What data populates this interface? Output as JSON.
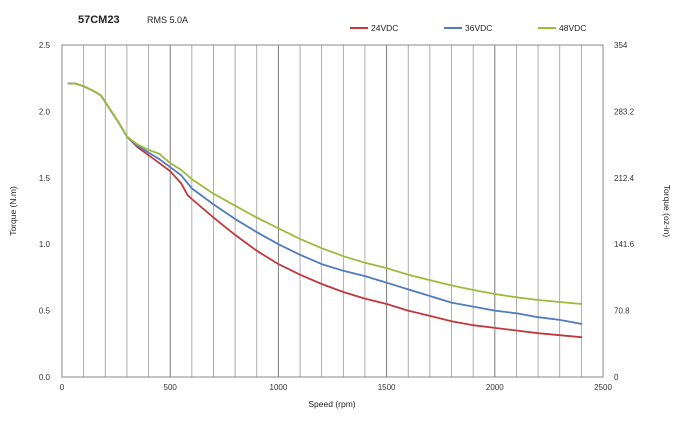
{
  "chart_data": {
    "type": "line",
    "title": "57CM23",
    "subtitle": "RMS 5.0A",
    "xlabel": "Speed (rpm)",
    "ylabel": "Torque (N.m)",
    "y2label": "Torque (oz-in)",
    "xlim": [
      0,
      2500
    ],
    "ylim": [
      0,
      2.5
    ],
    "y2lim": [
      0,
      354
    ],
    "x_ticks": [
      "0",
      "500",
      "1000",
      "1500",
      "2000",
      "2500"
    ],
    "y_ticks": [
      "0.0",
      "0.5",
      "1.0",
      "1.5",
      "2.0",
      "2.5"
    ],
    "y2_ticks": [
      "0",
      "70.8",
      "141.6",
      "212.4",
      "283.2",
      "354"
    ],
    "grid": true,
    "legend_position": "top-right",
    "series": [
      {
        "name": "24VDC",
        "color": "#c0393b",
        "points": [
          [
            30,
            2.21
          ],
          [
            60,
            2.21
          ],
          [
            100,
            2.19
          ],
          [
            150,
            2.15
          ],
          [
            180,
            2.12
          ],
          [
            220,
            2.02
          ],
          [
            260,
            1.92
          ],
          [
            300,
            1.81
          ],
          [
            350,
            1.73
          ],
          [
            400,
            1.67
          ],
          [
            450,
            1.61
          ],
          [
            500,
            1.55
          ],
          [
            550,
            1.46
          ],
          [
            580,
            1.37
          ],
          [
            600,
            1.34
          ],
          [
            700,
            1.2
          ],
          [
            800,
            1.07
          ],
          [
            900,
            0.95
          ],
          [
            1000,
            0.85
          ],
          [
            1100,
            0.77
          ],
          [
            1200,
            0.7
          ],
          [
            1300,
            0.64
          ],
          [
            1400,
            0.59
          ],
          [
            1500,
            0.55
          ],
          [
            1600,
            0.5
          ],
          [
            1700,
            0.46
          ],
          [
            1800,
            0.42
          ],
          [
            1900,
            0.39
          ],
          [
            2000,
            0.37
          ],
          [
            2100,
            0.35
          ],
          [
            2200,
            0.33
          ],
          [
            2300,
            0.315
          ],
          [
            2400,
            0.3
          ]
        ]
      },
      {
        "name": "36VDC",
        "color": "#4f7bbf",
        "points": [
          [
            30,
            2.21
          ],
          [
            60,
            2.21
          ],
          [
            100,
            2.19
          ],
          [
            150,
            2.15
          ],
          [
            180,
            2.12
          ],
          [
            220,
            2.02
          ],
          [
            260,
            1.92
          ],
          [
            300,
            1.81
          ],
          [
            350,
            1.74
          ],
          [
            400,
            1.69
          ],
          [
            450,
            1.64
          ],
          [
            500,
            1.58
          ],
          [
            550,
            1.52
          ],
          [
            600,
            1.42
          ],
          [
            700,
            1.3
          ],
          [
            800,
            1.19
          ],
          [
            900,
            1.09
          ],
          [
            1000,
            1.0
          ],
          [
            1100,
            0.92
          ],
          [
            1200,
            0.85
          ],
          [
            1300,
            0.8
          ],
          [
            1400,
            0.76
          ],
          [
            1500,
            0.71
          ],
          [
            1600,
            0.66
          ],
          [
            1700,
            0.61
          ],
          [
            1800,
            0.56
          ],
          [
            1900,
            0.53
          ],
          [
            2000,
            0.5
          ],
          [
            2100,
            0.48
          ],
          [
            2200,
            0.45
          ],
          [
            2300,
            0.43
          ],
          [
            2400,
            0.4
          ]
        ]
      },
      {
        "name": "48VDC",
        "color": "#9bbb3c",
        "points": [
          [
            30,
            2.21
          ],
          [
            60,
            2.21
          ],
          [
            100,
            2.19
          ],
          [
            150,
            2.15
          ],
          [
            180,
            2.12
          ],
          [
            220,
            2.02
          ],
          [
            260,
            1.92
          ],
          [
            300,
            1.81
          ],
          [
            350,
            1.75
          ],
          [
            400,
            1.71
          ],
          [
            450,
            1.68
          ],
          [
            500,
            1.61
          ],
          [
            550,
            1.56
          ],
          [
            600,
            1.49
          ],
          [
            700,
            1.38
          ],
          [
            800,
            1.29
          ],
          [
            900,
            1.2
          ],
          [
            1000,
            1.12
          ],
          [
            1100,
            1.04
          ],
          [
            1200,
            0.97
          ],
          [
            1300,
            0.91
          ],
          [
            1400,
            0.86
          ],
          [
            1500,
            0.82
          ],
          [
            1600,
            0.77
          ],
          [
            1700,
            0.73
          ],
          [
            1800,
            0.69
          ],
          [
            1900,
            0.655
          ],
          [
            2000,
            0.625
          ],
          [
            2100,
            0.6
          ],
          [
            2200,
            0.58
          ],
          [
            2300,
            0.565
          ],
          [
            2400,
            0.55
          ]
        ]
      }
    ]
  }
}
